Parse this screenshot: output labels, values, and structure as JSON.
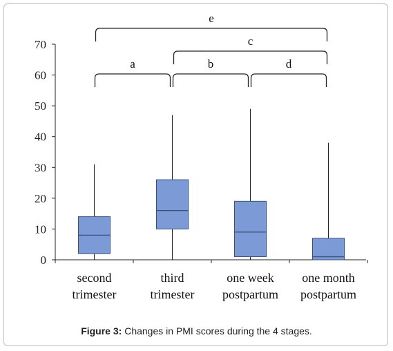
{
  "chart_data": {
    "type": "boxplot",
    "title": "",
    "xlabel": "",
    "ylabel": "",
    "ylim": [
      0,
      70
    ],
    "yticks": [
      0,
      10,
      20,
      30,
      40,
      50,
      60,
      70
    ],
    "grid": false,
    "categories": [
      {
        "lines": [
          "second",
          "trimester"
        ]
      },
      {
        "lines": [
          "third",
          "trimester"
        ]
      },
      {
        "lines": [
          "one week",
          "postpartum"
        ]
      },
      {
        "lines": [
          "one month",
          "postpartum"
        ]
      }
    ],
    "boxes": [
      {
        "min": 0,
        "q1": 2,
        "median": 8,
        "q3": 14,
        "max": 31
      },
      {
        "min": 0,
        "q1": 10,
        "median": 16,
        "q3": 26,
        "max": 47
      },
      {
        "min": 0,
        "q1": 1,
        "median": 9,
        "q3": 19,
        "max": 49
      },
      {
        "min": 0,
        "q1": 0,
        "median": 1,
        "q3": 7,
        "max": 38
      }
    ],
    "comparisons": [
      {
        "label": "a",
        "from": 0,
        "to": 1,
        "level": 0
      },
      {
        "label": "b",
        "from": 1,
        "to": 2,
        "level": 0
      },
      {
        "label": "d",
        "from": 2,
        "to": 3,
        "level": 0
      },
      {
        "label": "c",
        "from": 1,
        "to": 3,
        "level": 1
      },
      {
        "label": "e",
        "from": 0,
        "to": 3,
        "level": 2
      }
    ]
  },
  "colors": {
    "box_fill": "#7b9ad6",
    "box_stroke": "#3b4f7a",
    "line": "#222222"
  },
  "caption": {
    "label": "Figure 3:",
    "text": " Changes in PMI scores during the 4 stages."
  }
}
